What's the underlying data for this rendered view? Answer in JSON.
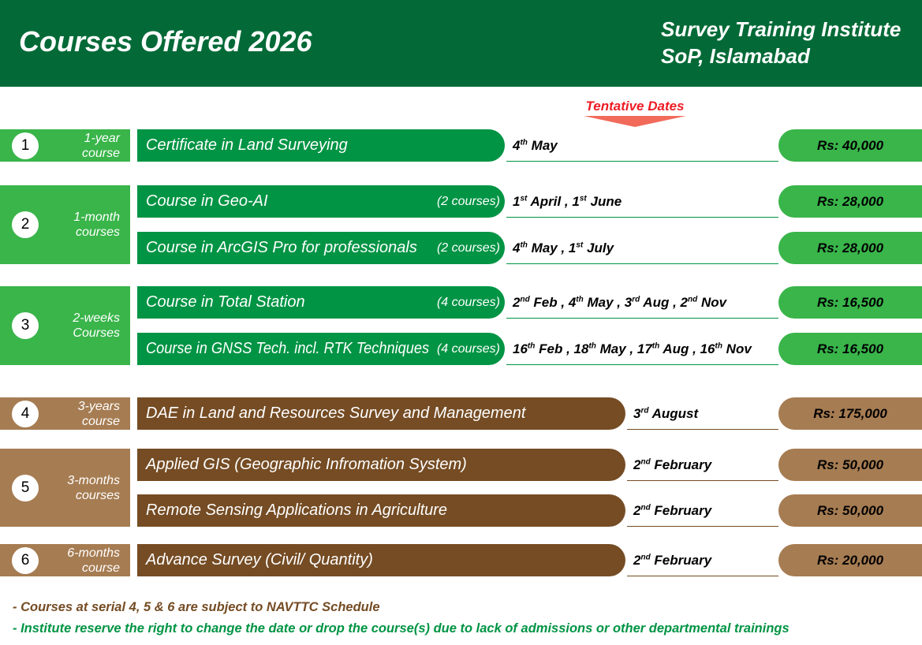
{
  "header": {
    "title": "Courses Offered 2026",
    "institute_line1": "Survey Training Institute",
    "institute_line2": "SoP, Islamabad"
  },
  "tentative_label": "Tentative Dates",
  "colors": {
    "header": "#036a37",
    "green_side": "#39b54a",
    "green_course": "#009444",
    "brown_side": "#a67c52",
    "brown_course": "#754c24"
  },
  "groups": [
    {
      "serial": "1",
      "duration": [
        "1-year",
        "course"
      ],
      "theme": "green",
      "courses": [
        {
          "name": "Certificate in Land Surveying",
          "count": "",
          "dates": [
            [
              "4",
              "th",
              "May"
            ]
          ],
          "price": "Rs: 40,000"
        }
      ]
    },
    {
      "serial": "2",
      "duration": [
        "1-month",
        "courses"
      ],
      "theme": "green",
      "courses": [
        {
          "name": "Course in Geo-AI",
          "count": "(2 courses)",
          "dates": [
            [
              "1",
              "st",
              "April"
            ],
            [
              "1",
              "st",
              "June"
            ]
          ],
          "price": "Rs: 28,000"
        },
        {
          "name": "Course in ArcGIS Pro for professionals",
          "count": "(2 courses)",
          "dates": [
            [
              "4",
              "th",
              "May"
            ],
            [
              "1",
              "st",
              "July"
            ]
          ],
          "price": "Rs: 28,000"
        }
      ]
    },
    {
      "serial": "3",
      "duration": [
        "2-weeks",
        "Courses"
      ],
      "theme": "green",
      "courses": [
        {
          "name": "Course in Total Station",
          "count": "(4 courses)",
          "dates": [
            [
              "2",
              "nd",
              "Feb"
            ],
            [
              "4",
              "th",
              "May"
            ],
            [
              "3",
              "rd",
              "Aug"
            ],
            [
              "2",
              "nd",
              "Nov"
            ]
          ],
          "price": "Rs: 16,500"
        },
        {
          "name": "Course in GNSS Tech. incl. RTK Techniques",
          "count": "(4 courses)",
          "dates": [
            [
              "16",
              "th",
              "Feb"
            ],
            [
              "18",
              "th",
              "May"
            ],
            [
              "17",
              "th",
              "Aug"
            ],
            [
              "16",
              "th",
              "Nov"
            ]
          ],
          "price": "Rs: 16,500"
        }
      ]
    },
    {
      "serial": "4",
      "duration": [
        "3-years",
        "course"
      ],
      "theme": "brown",
      "courses": [
        {
          "name": "DAE in Land and Resources Survey and Management",
          "count": "",
          "dates": [
            [
              "3",
              "rd",
              "August"
            ]
          ],
          "price": "Rs: 175,000"
        }
      ]
    },
    {
      "serial": "5",
      "duration": [
        "3-months",
        "courses"
      ],
      "theme": "brown",
      "courses": [
        {
          "name": "Applied GIS (Geographic Infromation System)",
          "count": "",
          "dates": [
            [
              "2",
              "nd",
              "February"
            ]
          ],
          "price": "Rs: 50,000"
        },
        {
          "name": "Remote Sensing Applications in Agriculture",
          "count": "",
          "dates": [
            [
              "2",
              "nd",
              "February"
            ]
          ],
          "price": "Rs: 50,000"
        }
      ]
    },
    {
      "serial": "6",
      "duration": [
        "6-months",
        "course"
      ],
      "theme": "brown",
      "courses": [
        {
          "name": "Advance Survey (Civil/ Quantity)",
          "count": "",
          "dates": [
            [
              "2",
              "nd",
              "February"
            ]
          ],
          "price": "Rs: 20,000"
        }
      ]
    }
  ],
  "notes": [
    "-  Courses at serial 4, 5 & 6 are subject to NAVTTC Schedule",
    "-  Institute reserve the right to change the date or drop the course(s) due to lack of admissions or other departmental trainings"
  ]
}
